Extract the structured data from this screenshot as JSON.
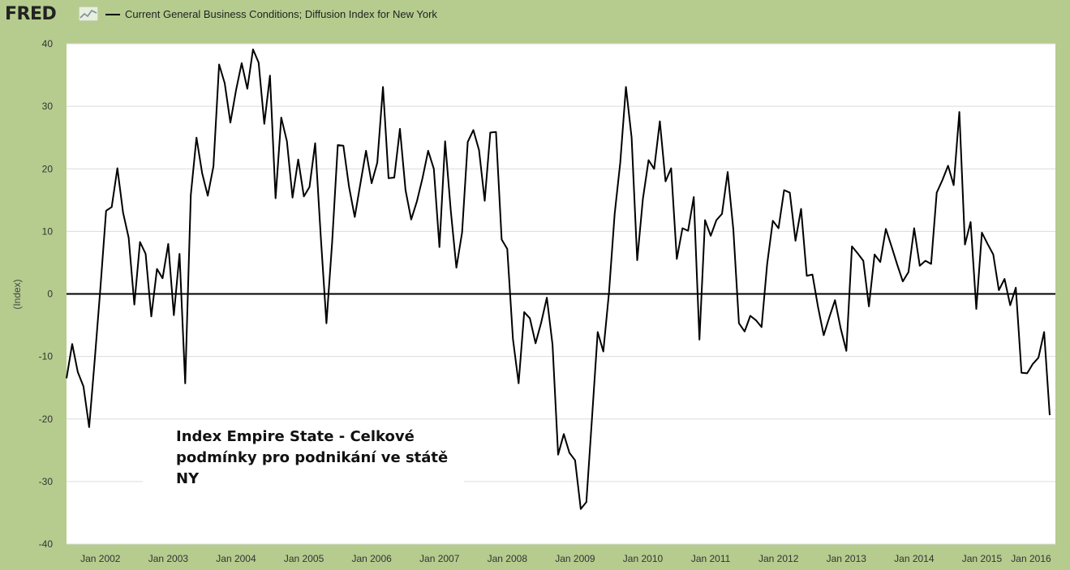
{
  "header": {
    "logo": "FRED",
    "legend_label": "Current General Business Conditions; Diffusion Index for New York",
    "line_color": "#000000",
    "background_color": "#b5cc8e"
  },
  "annotation": {
    "line1": "Index Empire State - Celkové",
    "line2": "podmínky pro podnikání  ve státě NY"
  },
  "chart_data": {
    "type": "line",
    "ylabel": "(Index)",
    "ylim": [
      -40,
      40
    ],
    "yticks": [
      40,
      30,
      20,
      10,
      0,
      -10,
      -20,
      -30,
      -40
    ],
    "zero_line": true,
    "grid": true,
    "xlim": [
      "2001-07",
      "2016-02"
    ],
    "xticks": [
      {
        "date": "2002-01",
        "label": "Jan 2002"
      },
      {
        "date": "2003-01",
        "label": "Jan 2003"
      },
      {
        "date": "2004-01",
        "label": "Jan 2004"
      },
      {
        "date": "2005-01",
        "label": "Jan 2005"
      },
      {
        "date": "2006-01",
        "label": "Jan 2006"
      },
      {
        "date": "2007-01",
        "label": "Jan 2007"
      },
      {
        "date": "2008-01",
        "label": "Jan 2008"
      },
      {
        "date": "2009-01",
        "label": "Jan 2009"
      },
      {
        "date": "2010-01",
        "label": "Jan 2010"
      },
      {
        "date": "2011-01",
        "label": "Jan 2011"
      },
      {
        "date": "2012-01",
        "label": "Jan 2012"
      },
      {
        "date": "2013-01",
        "label": "Jan 2013"
      },
      {
        "date": "2014-01",
        "label": "Jan 2014"
      },
      {
        "date": "2015-01",
        "label": "Jan 2015"
      },
      {
        "date": "2016-01",
        "label": "Jan 2016"
      }
    ],
    "series": [
      {
        "start": "2001-07",
        "frequency": "monthly",
        "values": [
          -13.5,
          -8.0,
          -12.5,
          -14.8,
          -21.3,
          -10.5,
          1.0,
          13.3,
          13.9,
          20.1,
          13.0,
          9.0,
          -1.7,
          8.3,
          6.4,
          -3.6,
          4.0,
          2.5,
          8.0,
          -3.4,
          6.4,
          -14.3,
          15.8,
          25.0,
          19.3,
          15.7,
          20.4,
          36.7,
          33.7,
          27.4,
          32.6,
          36.9,
          32.8,
          39.1,
          37.0,
          27.2,
          34.9,
          15.3,
          28.2,
          24.4,
          15.4,
          21.5,
          15.6,
          17.1,
          24.1,
          9.0,
          -4.7,
          8.2,
          23.8,
          23.7,
          17.1,
          12.3,
          17.6,
          22.9,
          17.7,
          21.0,
          33.1,
          18.5,
          18.6,
          26.4,
          16.6,
          11.9,
          14.8,
          18.5,
          22.9,
          20.0,
          7.5,
          24.4,
          13.3,
          4.2,
          9.8,
          24.3,
          26.2,
          23.0,
          14.9,
          25.8,
          25.9,
          8.7,
          7.2,
          -7.2,
          -14.3,
          -2.9,
          -3.9,
          -7.9,
          -4.6,
          -0.6,
          -8.1,
          -25.7,
          -22.4,
          -25.4,
          -26.6,
          -34.4,
          -33.3,
          -19.8,
          -6.1,
          -9.2,
          0.2,
          12.8,
          21.0,
          33.1,
          25.0,
          5.4,
          15.2,
          21.4,
          20.0,
          27.6,
          18.0,
          20.1,
          5.6,
          10.5,
          10.1,
          15.5,
          -7.3,
          11.8,
          9.3,
          11.8,
          12.8,
          19.5,
          10.3,
          -4.7,
          -6.0,
          -3.5,
          -4.2,
          -5.3,
          4.8,
          11.7,
          10.5,
          16.6,
          16.2,
          8.5,
          13.6,
          2.9,
          3.1,
          -2.1,
          -6.6,
          -3.7,
          -1.0,
          -5.5,
          -9.1,
          7.6,
          6.5,
          5.3,
          -2.0,
          6.3,
          5.1,
          10.4,
          7.6,
          4.7,
          2.0,
          3.5,
          10.5,
          4.5,
          5.3,
          4.8,
          16.2,
          18.2,
          20.5,
          17.4,
          29.1,
          7.9,
          11.5,
          -2.4,
          9.8,
          8.0,
          6.3,
          0.6,
          2.4,
          -1.8,
          1.0,
          -12.6,
          -12.7,
          -11.2,
          -10.2,
          -6.1,
          -19.4
        ]
      }
    ]
  }
}
